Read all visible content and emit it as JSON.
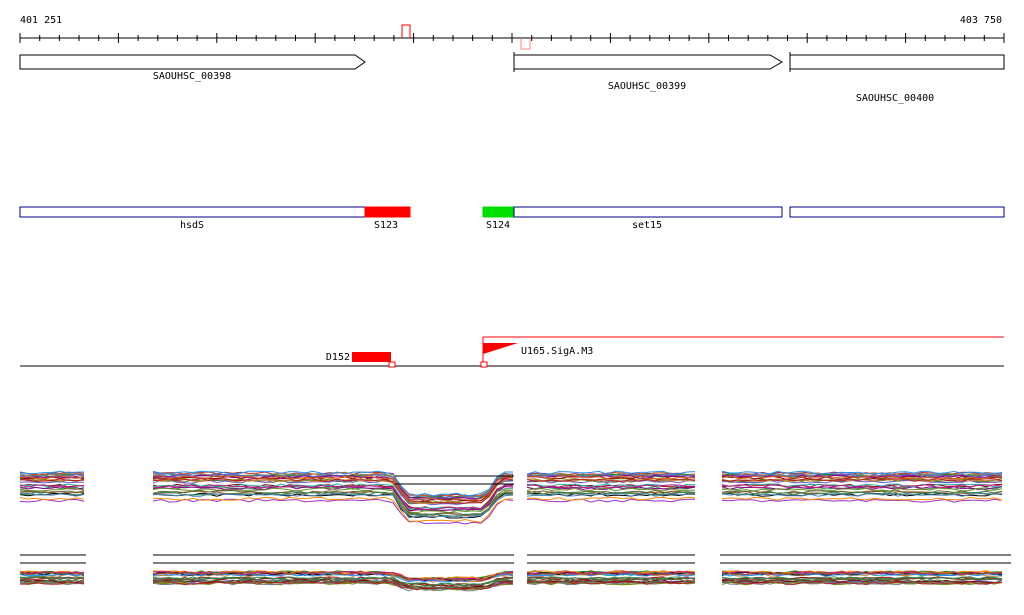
{
  "ruler": {
    "start_label": "401 251",
    "end_label": "403 750",
    "start_coord": 401251,
    "end_coord": 403750
  },
  "genes": [
    {
      "label": "SAOUHSC_00398",
      "start": 401251,
      "end": 402120,
      "strand": "+"
    },
    {
      "label": "SAOUHSC_00399",
      "start": 402630,
      "end": 403310,
      "strand": "+"
    },
    {
      "label": "SAOUHSC_00400",
      "start": 403320,
      "end": 403750,
      "strand": "+"
    }
  ],
  "annotations": [
    {
      "label": "hsdS",
      "start": 401251,
      "end": 402125,
      "color": "#ffffff"
    },
    {
      "label": "S123",
      "start": 402125,
      "end": 402240,
      "color": "#ff0000"
    },
    {
      "label": "S124",
      "start": 402550,
      "end": 402630,
      "color": "#00e000"
    },
    {
      "label": "set15",
      "start": 402630,
      "end": 403310,
      "color": "#ffffff"
    },
    {
      "label": "",
      "start": 403320,
      "end": 403750,
      "color": "#ffffff"
    }
  ],
  "features": [
    {
      "label": "D152",
      "start": 402110,
      "end": 402210,
      "color": "#ff0000"
    },
    {
      "label": "U165.SigA.M3",
      "start": 402550,
      "end": 402650,
      "color": "#ff0000"
    }
  ],
  "colors": {
    "accent": "#ff0000",
    "gene_outline": "#000000",
    "annotation_outline": "#000080",
    "green": "#00e000"
  }
}
